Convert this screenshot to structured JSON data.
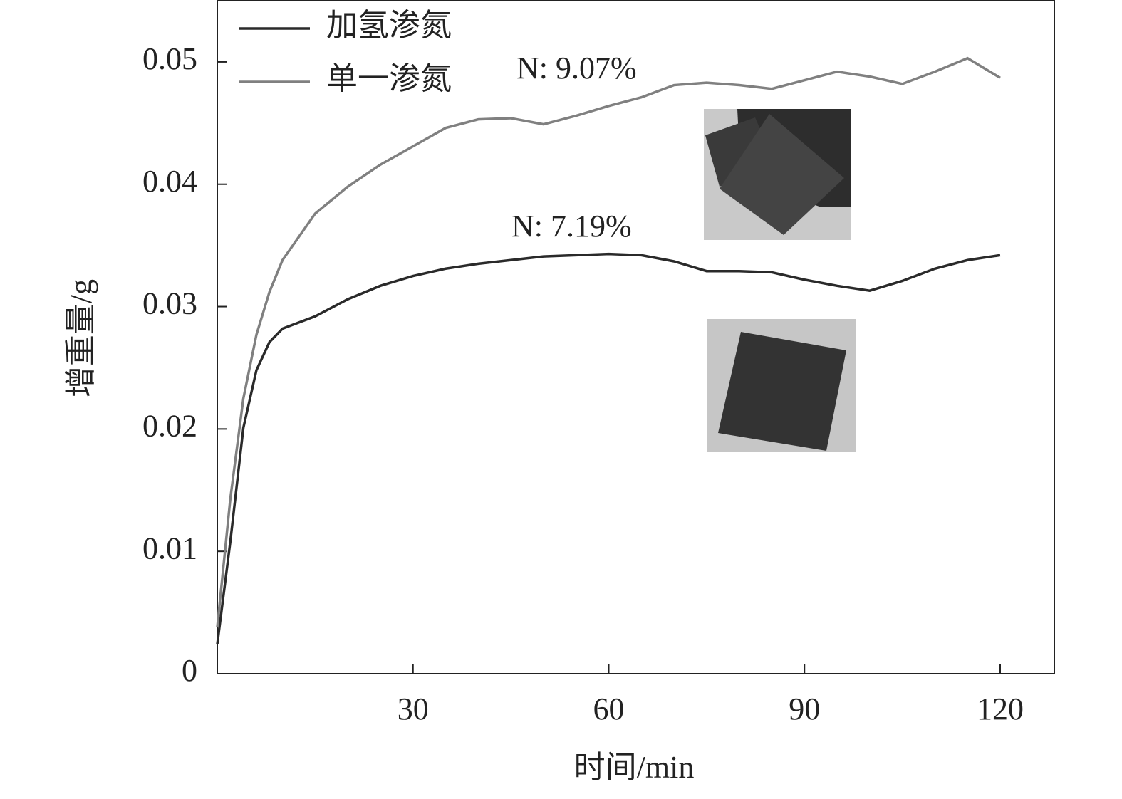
{
  "chart_data": {
    "type": "line",
    "x_label": "时间/min",
    "y_label": "增重量/g",
    "annotations": [
      "N: 9.07%",
      "N: 7.19%"
    ],
    "x": [
      0,
      2,
      4,
      6,
      8,
      10,
      15,
      20,
      25,
      30,
      35,
      40,
      45,
      50,
      55,
      60,
      65,
      70,
      75,
      80,
      85,
      90,
      95,
      100,
      105,
      110,
      115,
      120
    ],
    "series": [
      {
        "name": "加氢渗氮",
        "color": "#2a2a2a",
        "values": [
          0.0024,
          0.0108,
          0.0201,
          0.0248,
          0.0271,
          0.0282,
          0.0292,
          0.0306,
          0.0317,
          0.0325,
          0.0331,
          0.0335,
          0.0338,
          0.0341,
          0.0342,
          0.0343,
          0.0342,
          0.0337,
          0.0329,
          0.0329,
          0.0328,
          0.0322,
          0.0317,
          0.0313,
          0.0321,
          0.0331,
          0.0338,
          0.0342
        ]
      },
      {
        "name": "单一渗氮",
        "color": "#808080",
        "values": [
          0.0038,
          0.0143,
          0.0225,
          0.0277,
          0.0312,
          0.0338,
          0.0376,
          0.0398,
          0.0416,
          0.0431,
          0.0446,
          0.0453,
          0.0454,
          0.0449,
          0.0456,
          0.0464,
          0.0471,
          0.0481,
          0.0483,
          0.0481,
          0.0478,
          0.0485,
          0.0492,
          0.0488,
          0.0482,
          0.0492,
          0.0503,
          0.0487
        ]
      }
    ],
    "xlim": [
      0,
      128.3
    ],
    "ylim": [
      0,
      0.055
    ],
    "xticks": [
      30,
      60,
      90,
      120
    ],
    "yticks": [
      0,
      0.01,
      0.02,
      0.03,
      0.04,
      0.05
    ]
  }
}
